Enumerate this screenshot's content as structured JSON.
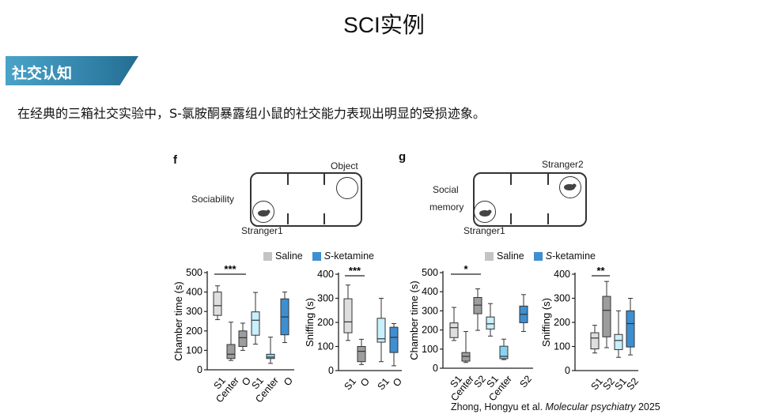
{
  "title": "SCI实例",
  "section_banner": "社交认知",
  "intro_text": "在经典的三箱社交实验中，S-氯胺酮暴露组小鼠的社交能力表现出明显的受损迹象。",
  "figure": {
    "panel_f": {
      "label": "f",
      "test": "Sociability",
      "object_label": "Object",
      "stranger_label": "Stranger1"
    },
    "panel_g": {
      "label": "g",
      "test_line1": "Social",
      "test_line2": "memory",
      "stranger2_label": "Stranger2",
      "stranger1_label": "Stranger1"
    },
    "legend": {
      "saline": "Saline",
      "ketamine_prefix": "S",
      "ketamine_suffix": "-ketamine"
    }
  },
  "colors": {
    "saline_light": "#dedede",
    "saline_dark": "#9d9d9d",
    "ket_light": "#c9eefc",
    "ket_mid": "#86d3f2",
    "ket_dark": "#3d8fd1",
    "legend_saline": "#c4c4c4",
    "legend_ket": "#3d8fd1"
  },
  "chart_data": [
    {
      "type": "box",
      "id": "f-chamber",
      "ylabel": "Chamber time (s)",
      "ylim": [
        0,
        500
      ],
      "yticks": [
        0,
        100,
        200,
        300,
        400,
        500
      ],
      "significance": {
        "label": "***",
        "from": 0,
        "to": 2
      },
      "boxes": [
        {
          "cat": "S1",
          "group": "Saline",
          "color": "saline_light",
          "min": 258,
          "q1": 280,
          "median": 330,
          "q3": 400,
          "max": 432
        },
        {
          "cat": "Center",
          "group": "Saline",
          "color": "saline_dark",
          "min": 48,
          "q1": 58,
          "median": 80,
          "q3": 130,
          "max": 245
        },
        {
          "cat": "O",
          "group": "Saline",
          "color": "saline_dark",
          "min": 100,
          "q1": 120,
          "median": 165,
          "q3": 200,
          "max": 240
        },
        {
          "cat": "S1",
          "group": "S-ketamine",
          "color": "ket_light",
          "min": 132,
          "q1": 178,
          "median": 255,
          "q3": 298,
          "max": 398
        },
        {
          "cat": "Center",
          "group": "S-ketamine",
          "color": "ket_mid",
          "min": 33,
          "q1": 58,
          "median": 65,
          "q3": 80,
          "max": 168
        },
        {
          "cat": "O",
          "group": "S-ketamine",
          "color": "ket_dark",
          "min": 140,
          "q1": 180,
          "median": 272,
          "q3": 365,
          "max": 400
        }
      ]
    },
    {
      "type": "box",
      "id": "f-sniffing",
      "ylabel": "Sniffing (s)",
      "ylim": [
        0,
        400
      ],
      "yticks": [
        0,
        100,
        200,
        300,
        400
      ],
      "significance": {
        "label": "***",
        "from": 0,
        "to": 1
      },
      "boxes": [
        {
          "cat": "S1",
          "group": "Saline",
          "color": "saline_light",
          "min": 125,
          "q1": 157,
          "median": 202,
          "q3": 298,
          "max": 355
        },
        {
          "cat": "O",
          "group": "Saline",
          "color": "saline_dark",
          "min": 25,
          "q1": 37,
          "median": 80,
          "q3": 100,
          "max": 130
        },
        {
          "cat": "S1",
          "group": "S-ketamine",
          "color": "ket_light",
          "min": 37,
          "q1": 118,
          "median": 132,
          "q3": 217,
          "max": 300
        },
        {
          "cat": "O",
          "group": "S-ketamine",
          "color": "ket_dark",
          "min": 20,
          "q1": 75,
          "median": 138,
          "q3": 180,
          "max": 195
        }
      ]
    },
    {
      "type": "box",
      "id": "g-chamber",
      "ylabel": "Chamber time (s)",
      "ylim": [
        0,
        500
      ],
      "yticks": [
        0,
        100,
        200,
        300,
        400,
        500
      ],
      "significance": {
        "label": "*",
        "from": 0,
        "to": 2
      },
      "boxes": [
        {
          "cat": "S1",
          "group": "Saline",
          "color": "saline_light",
          "min": 145,
          "q1": 160,
          "median": 212,
          "q3": 237,
          "max": 318
        },
        {
          "cat": "Center",
          "group": "Saline",
          "color": "saline_dark",
          "min": 30,
          "q1": 37,
          "median": 62,
          "q3": 82,
          "max": 192
        },
        {
          "cat": "S2",
          "group": "Saline",
          "color": "saline_dark",
          "min": 198,
          "q1": 285,
          "median": 330,
          "q3": 370,
          "max": 415
        },
        {
          "cat": "S1",
          "group": "S-ketamine",
          "color": "ket_light",
          "min": 168,
          "q1": 205,
          "median": 232,
          "q3": 268,
          "max": 338
        },
        {
          "cat": "Center",
          "group": "S-ketamine",
          "color": "ket_mid",
          "min": 45,
          "q1": 50,
          "median": 62,
          "q3": 115,
          "max": 152
        },
        {
          "cat": "S2",
          "group": "S-ketamine",
          "color": "ket_dark",
          "min": 192,
          "q1": 238,
          "median": 282,
          "q3": 325,
          "max": 385
        }
      ]
    },
    {
      "type": "box",
      "id": "g-sniffing",
      "ylabel": "Sniffing (s)",
      "ylim": [
        0,
        400
      ],
      "yticks": [
        0,
        100,
        200,
        300,
        400
      ],
      "significance": {
        "label": "**",
        "from": 0,
        "to": 1
      },
      "boxes": [
        {
          "cat": "S1",
          "group": "Saline",
          "color": "saline_light",
          "min": 73,
          "q1": 90,
          "median": 135,
          "q3": 157,
          "max": 188
        },
        {
          "cat": "S2",
          "group": "Saline",
          "color": "saline_dark",
          "min": 95,
          "q1": 140,
          "median": 250,
          "q3": 308,
          "max": 370
        },
        {
          "cat": "S1",
          "group": "S-ketamine",
          "color": "ket_light",
          "min": 55,
          "q1": 87,
          "median": 125,
          "q3": 150,
          "max": 248
        },
        {
          "cat": "S2",
          "group": "S-ketamine",
          "color": "ket_dark",
          "min": 65,
          "q1": 98,
          "median": 195,
          "q3": 248,
          "max": 300
        }
      ]
    }
  ],
  "citation": {
    "authors": "Zhong, Hongyu et al. ",
    "journal": "Molecular psychiatry",
    "year": " 2025"
  }
}
